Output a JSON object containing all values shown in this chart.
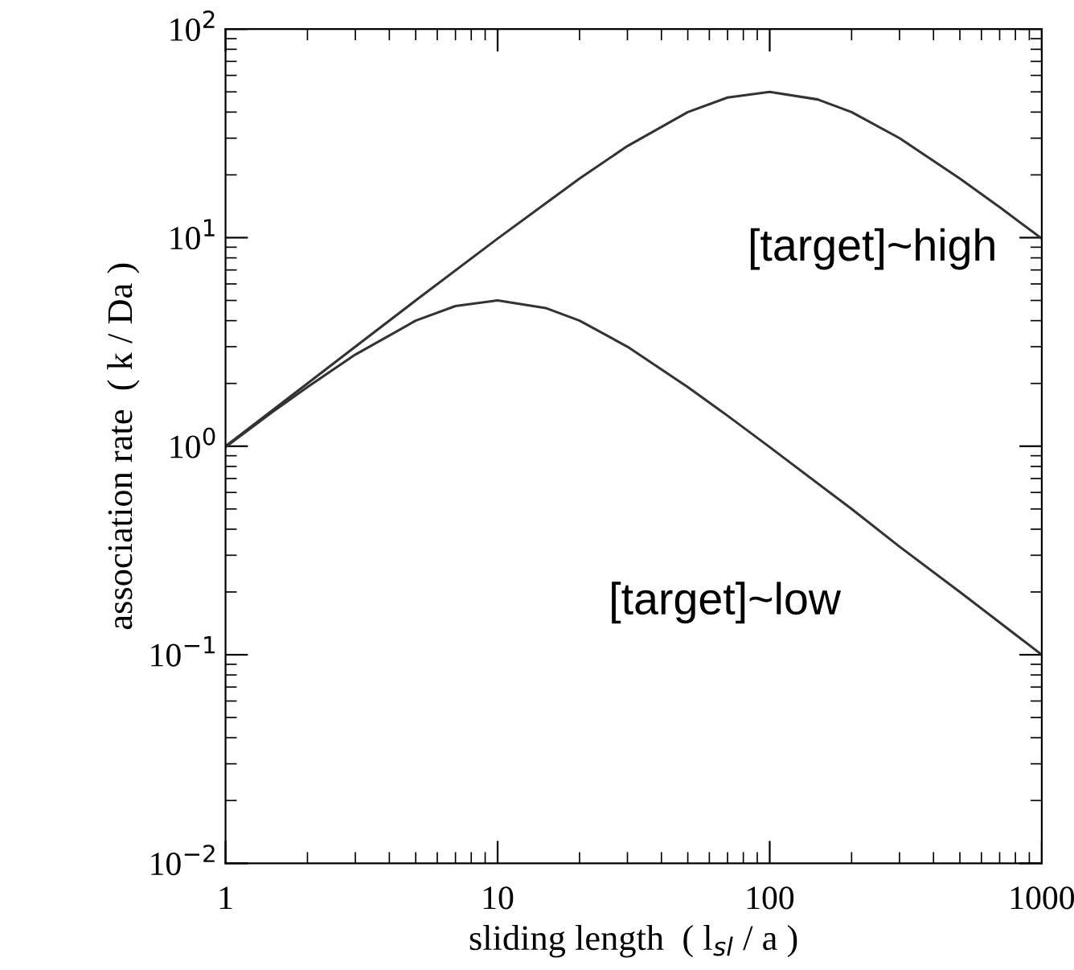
{
  "chart_data": {
    "type": "line",
    "xlabel": "sliding length  ( l$_{sl}$ / a )",
    "ylabel": "association rate  ( k / Da )",
    "log": "xy",
    "xlim": [
      1,
      1000
    ],
    "ylim": [
      0.01,
      100
    ],
    "xticks": [
      1,
      10,
      100,
      1000
    ],
    "yticks": [
      {
        "value": 0.01,
        "label": "10$^{−2}$"
      },
      {
        "value": 0.1,
        "label": "10$^{−1}$"
      },
      {
        "value": 1,
        "label": "10$^{0}$"
      },
      {
        "value": 10,
        "label": "10$^{1}$"
      },
      {
        "value": 100,
        "label": "10$^{2}$"
      }
    ],
    "grid": false,
    "legend": false,
    "marker": "none",
    "line_style": "solid",
    "series": [
      {
        "name": "[target]~high",
        "color": "#333333",
        "x": [
          1,
          2,
          3,
          5,
          10,
          20,
          30,
          50,
          70,
          100,
          150,
          200,
          300,
          500,
          700,
          1000
        ],
        "values": [
          1.0,
          2.0,
          3.0,
          5.0,
          9.9,
          19.2,
          27.5,
          40,
          47,
          50,
          46,
          40,
          30,
          19.2,
          14.0,
          9.9
        ]
      },
      {
        "name": "[target]~low",
        "color": "#333333",
        "x": [
          1,
          1.5,
          2,
          3,
          5,
          7,
          10,
          15,
          20,
          30,
          50,
          70,
          100,
          200,
          300,
          500,
          1000
        ],
        "values": [
          0.99,
          1.47,
          1.92,
          2.75,
          4.0,
          4.7,
          5.0,
          4.6,
          4.0,
          3.0,
          1.92,
          1.4,
          0.99,
          0.5,
          0.33,
          0.2,
          0.1
        ]
      }
    ]
  }
}
